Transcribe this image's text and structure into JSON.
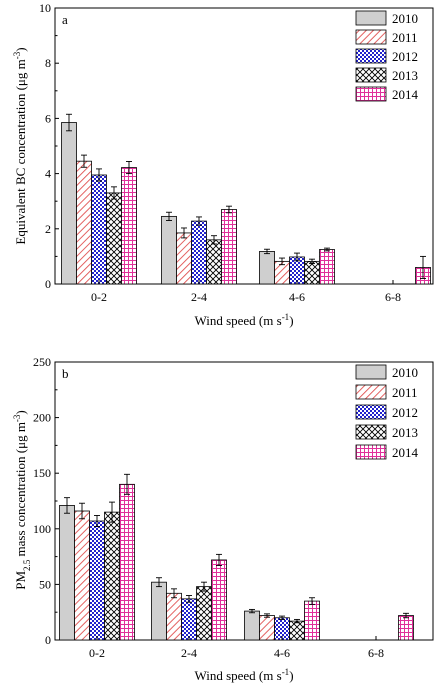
{
  "chart_data": [
    {
      "type": "bar",
      "panel_label": "a",
      "ylabel_main": "Equivalent BC concentration (μg m",
      "ylabel_sup": "-3",
      "ylabel_end": ")",
      "xlabel_main": "Wind speed (m s",
      "xlabel_sup": "-1",
      "xlabel_end": ")",
      "ylim": [
        0,
        10
      ],
      "yticks": [
        0,
        2,
        4,
        6,
        8,
        10
      ],
      "categories": [
        "0-2",
        "2-4",
        "4-6",
        "6-8"
      ],
      "legend_position": "top-right",
      "series": [
        {
          "name": "2010",
          "values": [
            5.85,
            2.45,
            1.18,
            null
          ],
          "errors": [
            0.3,
            0.15,
            0.08,
            null
          ]
        },
        {
          "name": "2011",
          "values": [
            4.45,
            1.85,
            0.82,
            null
          ],
          "errors": [
            0.22,
            0.18,
            0.12,
            null
          ]
        },
        {
          "name": "2012",
          "values": [
            3.95,
            2.28,
            0.98,
            null
          ],
          "errors": [
            0.22,
            0.15,
            0.14,
            null
          ]
        },
        {
          "name": "2013",
          "values": [
            3.3,
            1.6,
            0.82,
            null
          ],
          "errors": [
            0.22,
            0.15,
            0.08,
            null
          ]
        },
        {
          "name": "2014",
          "values": [
            4.22,
            2.7,
            1.25,
            0.6
          ],
          "errors": [
            0.22,
            0.12,
            0.05,
            0.4
          ]
        }
      ]
    },
    {
      "type": "bar",
      "panel_label": "b",
      "ylabel_main": "PM",
      "ylabel_sub": "2.5",
      "ylabel_rest": " mass concentration (μg m",
      "ylabel_sup": "-3",
      "ylabel_end": ")",
      "xlabel_main": "Wind speed (m s",
      "xlabel_sup": "-1",
      "xlabel_end": ")",
      "ylim": [
        0,
        250
      ],
      "yticks": [
        0,
        50,
        100,
        150,
        200,
        250
      ],
      "categories": [
        "0-2",
        "2-4",
        "4-6",
        "6-8"
      ],
      "legend_position": "top-right",
      "series": [
        {
          "name": "2010",
          "values": [
            121,
            52,
            26,
            null
          ],
          "errors": [
            7,
            4,
            1.5,
            null
          ]
        },
        {
          "name": "2011",
          "values": [
            116,
            42,
            22,
            null
          ],
          "errors": [
            7,
            4,
            1.5,
            null
          ]
        },
        {
          "name": "2012",
          "values": [
            107,
            37,
            20,
            null
          ],
          "errors": [
            5,
            3,
            1.5,
            null
          ]
        },
        {
          "name": "2013",
          "values": [
            115,
            48,
            17,
            null
          ],
          "errors": [
            9,
            4,
            1.5,
            null
          ]
        },
        {
          "name": "2014",
          "values": [
            140,
            72,
            35,
            22
          ],
          "errors": [
            9,
            5,
            3,
            2
          ]
        }
      ]
    }
  ]
}
